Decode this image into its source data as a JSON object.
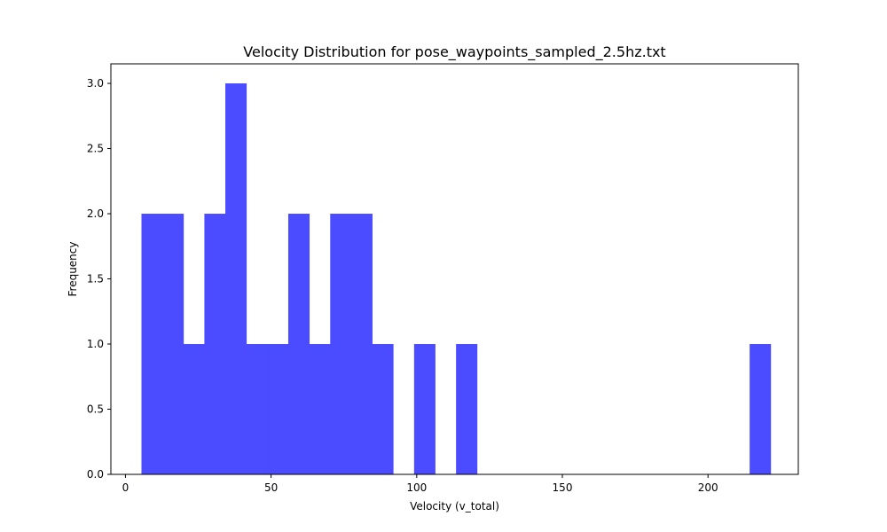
{
  "chart_data": {
    "type": "bar",
    "title": "Velocity Distribution for pose_waypoints_sampled_2.5hz.txt",
    "xlabel": "Velocity (v_total)",
    "ylabel": "Frequency",
    "xlim": [
      -5,
      231
    ],
    "ylim": [
      0,
      3.15
    ],
    "xticks": [
      0,
      50,
      100,
      150,
      200
    ],
    "xtick_labels": [
      "0",
      "50",
      "100",
      "150",
      "200"
    ],
    "yticks": [
      0,
      0.5,
      1,
      1.5,
      2,
      2.5,
      3
    ],
    "ytick_labels": [
      "0.0",
      "0.5",
      "1.0",
      "1.5",
      "2.0",
      "2.5",
      "3.0"
    ],
    "grid": false,
    "bar_color": "#4b4bff",
    "bins": [
      {
        "start": 5.5,
        "end": 12.7,
        "count": 2
      },
      {
        "start": 12.7,
        "end": 19.9,
        "count": 2
      },
      {
        "start": 19.9,
        "end": 27.1,
        "count": 1
      },
      {
        "start": 27.1,
        "end": 34.3,
        "count": 2
      },
      {
        "start": 34.3,
        "end": 41.5,
        "count": 3
      },
      {
        "start": 41.5,
        "end": 48.7,
        "count": 1
      },
      {
        "start": 48.7,
        "end": 55.9,
        "count": 1
      },
      {
        "start": 55.9,
        "end": 63.1,
        "count": 2
      },
      {
        "start": 63.1,
        "end": 70.3,
        "count": 1
      },
      {
        "start": 70.3,
        "end": 77.5,
        "count": 2
      },
      {
        "start": 77.5,
        "end": 84.7,
        "count": 2
      },
      {
        "start": 84.7,
        "end": 91.9,
        "count": 1
      },
      {
        "start": 91.9,
        "end": 99.1,
        "count": 0
      },
      {
        "start": 99.1,
        "end": 106.3,
        "count": 1
      },
      {
        "start": 106.3,
        "end": 113.5,
        "count": 0
      },
      {
        "start": 113.5,
        "end": 120.7,
        "count": 1
      },
      {
        "start": 120.7,
        "end": 127.9,
        "count": 0
      },
      {
        "start": 127.9,
        "end": 135.1,
        "count": 0
      },
      {
        "start": 135.1,
        "end": 142.3,
        "count": 0
      },
      {
        "start": 142.3,
        "end": 149.5,
        "count": 0
      },
      {
        "start": 149.5,
        "end": 156.7,
        "count": 0
      },
      {
        "start": 156.7,
        "end": 163.9,
        "count": 0
      },
      {
        "start": 163.9,
        "end": 171.1,
        "count": 0
      },
      {
        "start": 171.1,
        "end": 178.3,
        "count": 0
      },
      {
        "start": 178.3,
        "end": 185.5,
        "count": 0
      },
      {
        "start": 185.5,
        "end": 192.7,
        "count": 0
      },
      {
        "start": 192.7,
        "end": 199.9,
        "count": 0
      },
      {
        "start": 199.9,
        "end": 207.1,
        "count": 0
      },
      {
        "start": 207.1,
        "end": 214.3,
        "count": 0
      },
      {
        "start": 214.3,
        "end": 221.5,
        "count": 1
      }
    ]
  }
}
